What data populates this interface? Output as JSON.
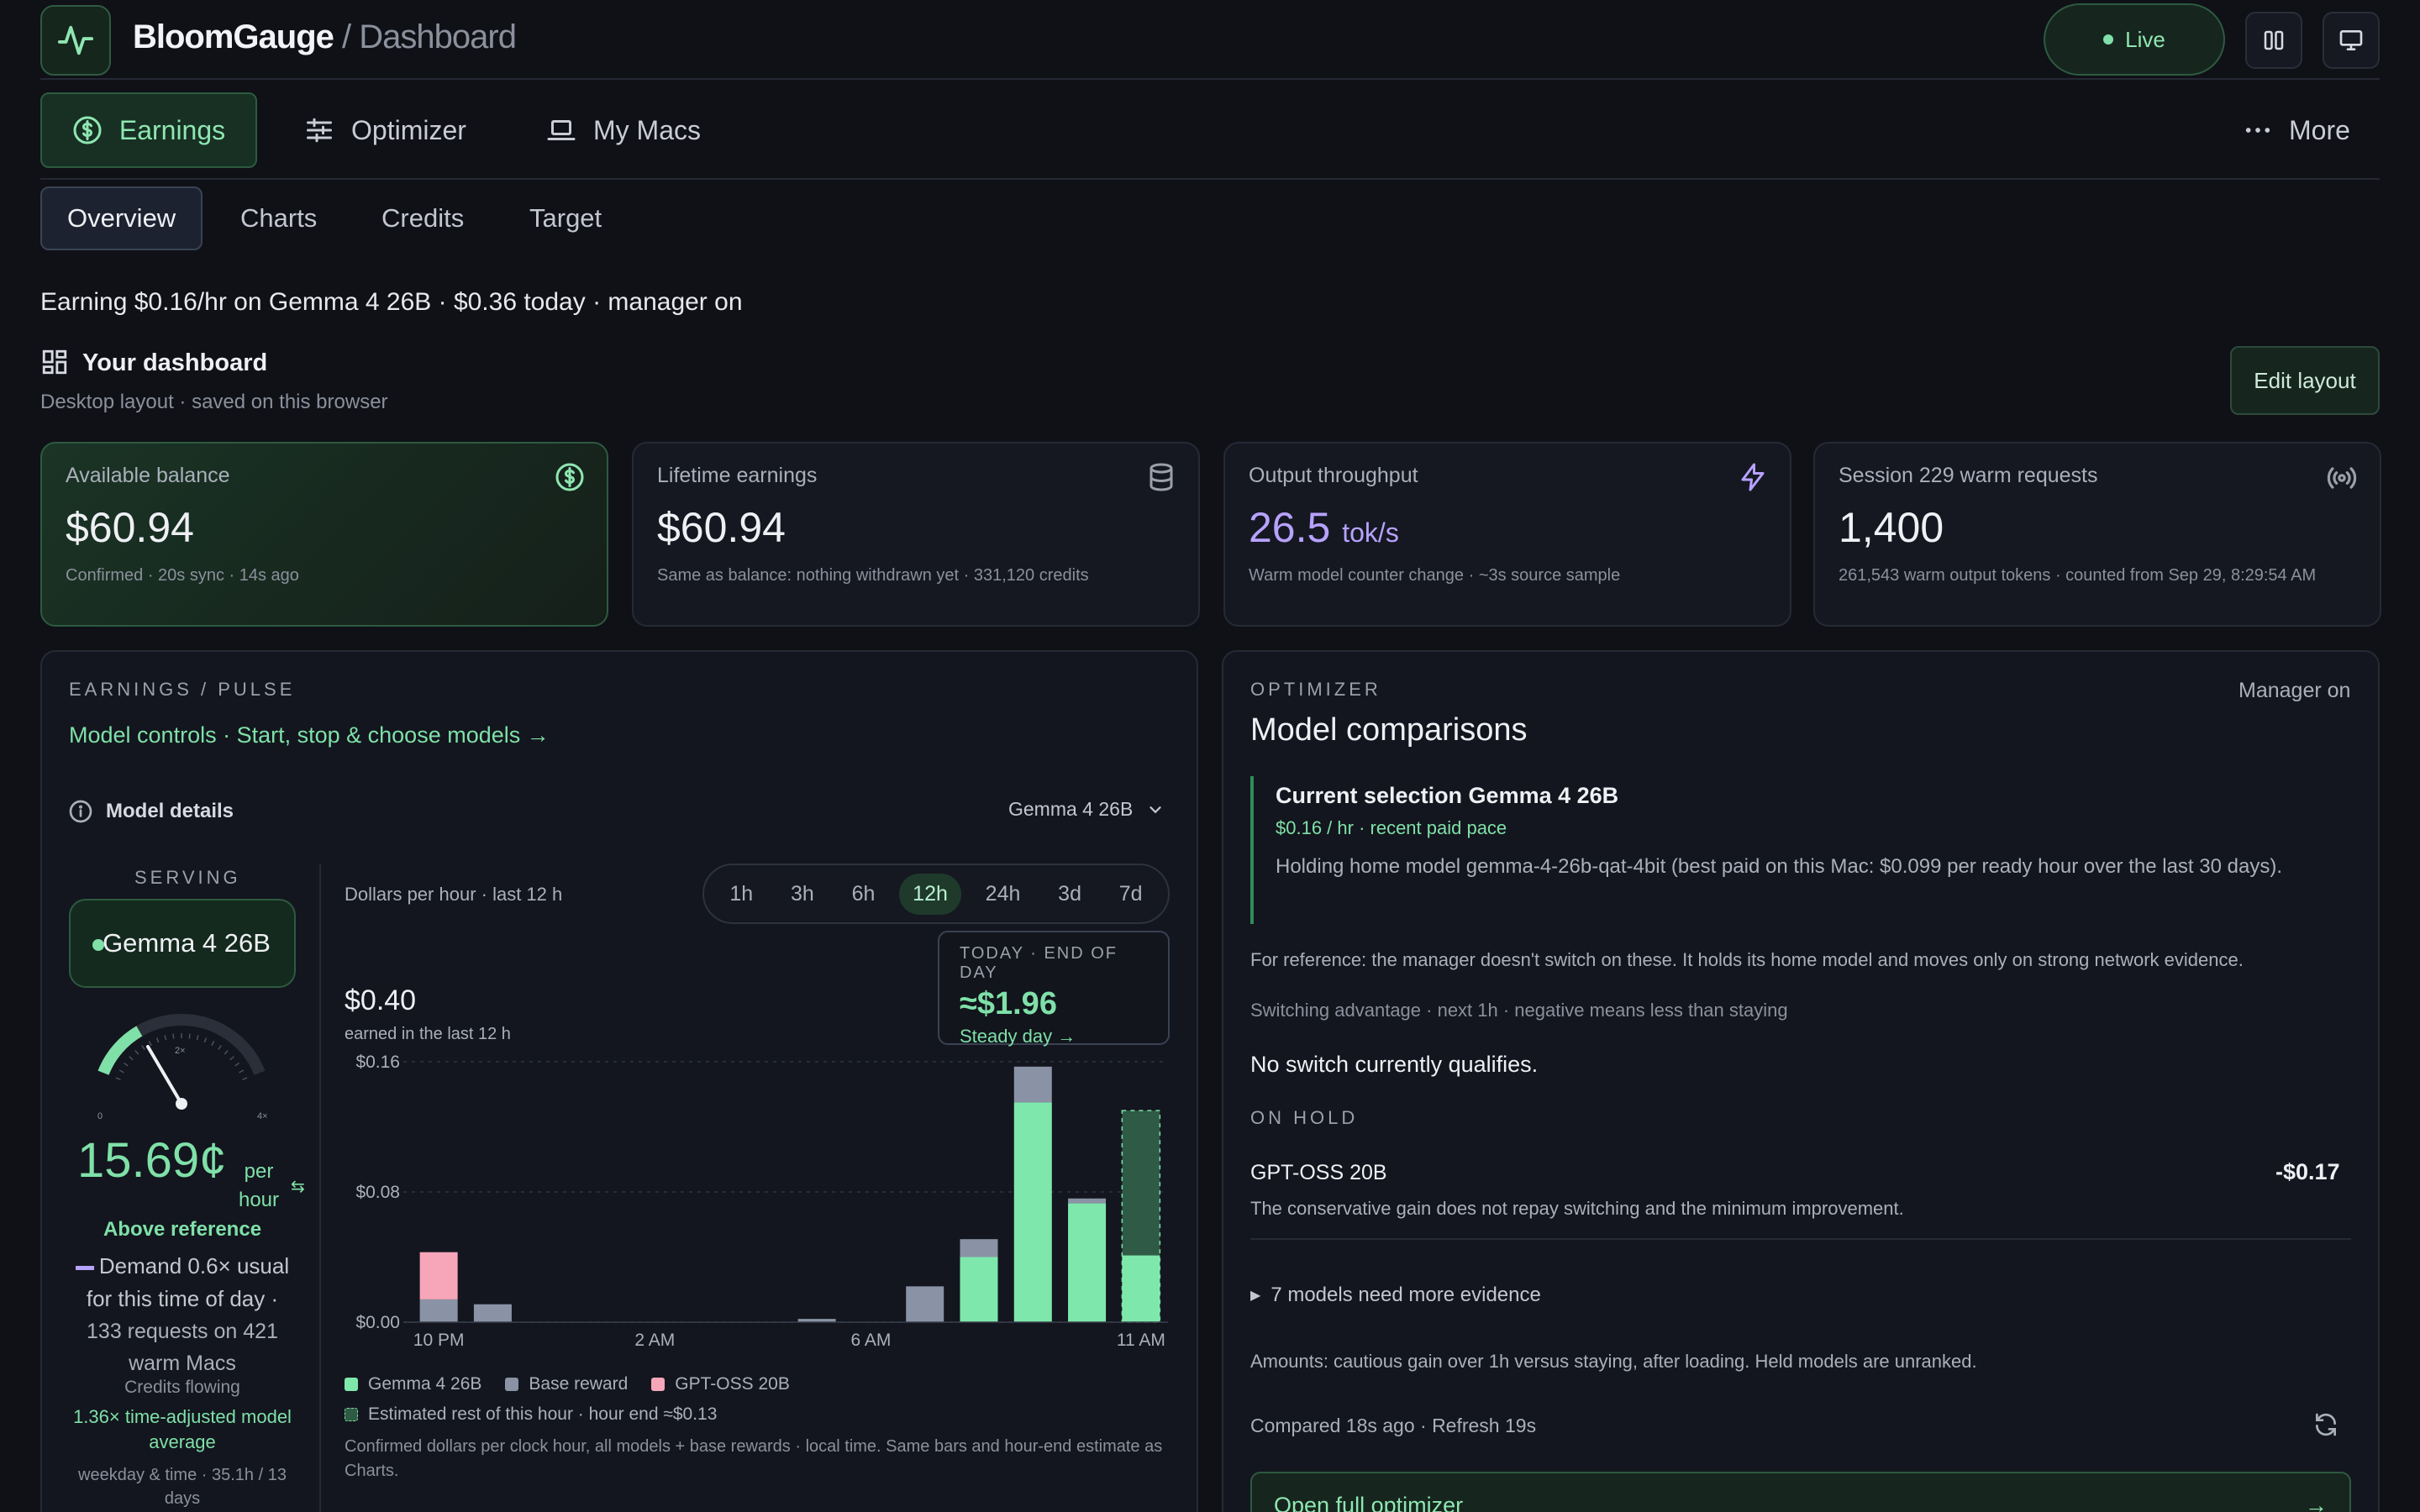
{
  "header": {
    "brand": "BloomGauge",
    "section": "/ Dashboard",
    "live_label": "Live"
  },
  "main_tabs": [
    {
      "label": "Earnings",
      "icon": "dollar-circle-icon",
      "active": true
    },
    {
      "label": "Optimizer",
      "icon": "sliders-icon",
      "active": false
    },
    {
      "label": "My Macs",
      "icon": "laptop-icon",
      "active": false
    }
  ],
  "more_label": "More",
  "sub_tabs": [
    {
      "label": "Overview",
      "active": true
    },
    {
      "label": "Charts",
      "active": false
    },
    {
      "label": "Credits",
      "active": false
    },
    {
      "label": "Target",
      "active": false
    }
  ],
  "status_line": "Earning $0.16/hr on Gemma 4 26B · $0.36 today · manager on",
  "dashboard": {
    "title": "Your dashboard",
    "subtitle": "Desktop layout · saved on this browser",
    "edit_label": "Edit layout"
  },
  "cards": [
    {
      "label": "Available balance",
      "value": "$60.94",
      "unit": "",
      "foot": "Confirmed · 20s sync · 14s ago",
      "icon": "dollar-circle-icon"
    },
    {
      "label": "Lifetime earnings",
      "value": "$60.94",
      "unit": "",
      "foot": "Same as balance: nothing withdrawn yet · 331,120 credits",
      "icon": "database-icon"
    },
    {
      "label": "Output throughput",
      "value": "26.5",
      "unit": "tok/s",
      "foot": "Warm model counter change · ~3s source sample",
      "icon": "bolt-icon"
    },
    {
      "label": "Session 229 warm requests",
      "value": "1,400",
      "unit": "",
      "foot": "261,543 warm output tokens · counted from Sep 29, 8:29:54 AM",
      "icon": "broadcast-icon"
    }
  ],
  "pulse": {
    "kicker": "EARNINGS / PULSE",
    "model_controls_link": "Model controls · Start, stop & choose models →",
    "model_details_label": "Model details",
    "model_select": "Gemma 4 26B",
    "serving_label": "SERVING",
    "serving_model": "Gemma 4 26B",
    "gauge_ticks": [
      "0",
      "2×",
      "4×"
    ],
    "gauge_fraction": 0.28,
    "rate_value": "15.69¢",
    "rate_unit": "per hour",
    "above_label": "Above reference",
    "demand_text": "Demand 0.6× usual for this time of day ·",
    "requests_text": "133 requests on 421 warm Macs",
    "credits_flowing": "Credits flowing",
    "time_adjusted": "1.36× time-adjusted model average",
    "weekday_text": "weekday & time · 35.1h / 13 days",
    "chart_caption": "Dollars per hour · last 12 h",
    "ranges": [
      {
        "label": "1h",
        "active": false
      },
      {
        "label": "3h",
        "active": false
      },
      {
        "label": "6h",
        "active": false
      },
      {
        "label": "12h",
        "active": true
      },
      {
        "label": "24h",
        "active": false
      },
      {
        "label": "3d",
        "active": false
      },
      {
        "label": "7d",
        "active": false
      }
    ],
    "earned_value": "$0.40",
    "earned_label": "earned in the last 12 h",
    "today": {
      "kicker": "TODAY · END OF DAY",
      "value": "≈$1.96",
      "link": "Steady day →"
    },
    "legend_estimated": "Estimated rest of this hour · hour end ≈$0.13",
    "footnote": "Confirmed dollars per clock hour, all models + base rewards · local time. Same bars and hour-end estimate as Charts."
  },
  "chart_data": {
    "type": "bar",
    "stacked": true,
    "title": "",
    "xlabel": "",
    "ylabel": "",
    "ylim": [
      0,
      0.16
    ],
    "y_ticks": [
      "$0.00",
      "$0.08",
      "$0.16"
    ],
    "x_tick_labels": [
      "10 PM",
      "2 AM",
      "6 AM",
      "11 AM"
    ],
    "x_tick_indices": [
      0,
      4,
      8,
      13
    ],
    "categories": [
      "10 PM",
      "11 PM",
      "12 AM",
      "1 AM",
      "2 AM",
      "3 AM",
      "4 AM",
      "5 AM",
      "6 AM",
      "7 AM",
      "8 AM",
      "9 AM",
      "10 AM",
      "11 AM"
    ],
    "series": [
      {
        "name": "Gemma 4 26B",
        "color": "#7ee8ac",
        "values": [
          0,
          0,
          0,
          0,
          0,
          0,
          0,
          0,
          0,
          0,
          0.04,
          0.135,
          0.073,
          0.041
        ]
      },
      {
        "name": "Base reward",
        "color": "#8a93a6",
        "values": [
          0.014,
          0.011,
          0,
          0,
          0,
          0,
          0,
          0.002,
          0,
          0.022,
          0.011,
          0.022,
          0.003,
          0
        ]
      },
      {
        "name": "GPT-OSS 20B",
        "color": "#f7a6b9",
        "values": [
          0.029,
          0,
          0,
          0,
          0,
          0,
          0,
          0,
          0,
          0,
          0,
          0,
          0,
          0
        ]
      }
    ],
    "estimated": {
      "index": 13,
      "value": 0.13,
      "color": "#2f5a45"
    },
    "legend": "bottom-left",
    "grid": true
  },
  "optimizer": {
    "kicker": "OPTIMIZER",
    "title": "Model comparisons",
    "manager_status": "Manager on",
    "current_selection": "Current selection Gemma 4 26B",
    "current_rate": "$0.16 / hr · recent paid pace",
    "current_desc": "Holding home model gemma-4-26b-qat-4bit (best paid on this Mac: $0.099 per ready hour over the last 30 days).",
    "reference_text": "For reference: the manager doesn't switch on these. It holds its home model and moves only on strong network evidence.",
    "switching_text": "Switching advantage · next 1h · negative means less than staying",
    "no_switch": "No switch currently qualifies.",
    "on_hold_label": "ON HOLD",
    "hold_model": "GPT-OSS 20B",
    "hold_value": "-$0.17",
    "hold_desc": "The conservative gain does not repay switching and the minimum improvement.",
    "evidence_text": "7 models need more evidence",
    "amounts_text": "Amounts: cautious gain over 1h versus staying, after loading. Held models are unranked.",
    "compared_text": "Compared 18s ago · Refresh 19s",
    "open_label": "Open full optimizer"
  }
}
